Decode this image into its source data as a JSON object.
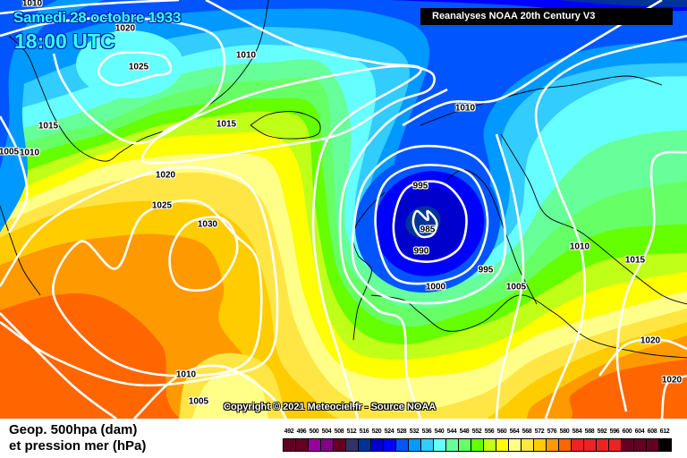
{
  "header": {
    "date": "Samedi 28 octobre 1933",
    "time": "18:00 UTC",
    "source": "Reanalyses NOAA 20th Century V3"
  },
  "copyright": "Copyright © 2021 Meteociel.fr - Source NOAA",
  "footer": {
    "line1": "Geop. 500hpa (dam)",
    "line2": "et pression mer (hPa)"
  },
  "legend": [
    {
      "value": "492",
      "color": "#660022"
    },
    {
      "value": "496",
      "color": "#660022"
    },
    {
      "value": "500",
      "color": "#990099"
    },
    {
      "value": "504",
      "color": "#990099"
    },
    {
      "value": "508",
      "color": "#660022"
    },
    {
      "value": "512",
      "color": "#333366"
    },
    {
      "value": "516",
      "color": "#003399"
    },
    {
      "value": "520",
      "color": "#0000cc"
    },
    {
      "value": "524",
      "color": "#0000ff"
    },
    {
      "value": "528",
      "color": "#0055ff"
    },
    {
      "value": "532",
      "color": "#0099ff"
    },
    {
      "value": "536",
      "color": "#33ccff"
    },
    {
      "value": "540",
      "color": "#66ffff"
    },
    {
      "value": "544",
      "color": "#66ff99"
    },
    {
      "value": "548",
      "color": "#66ff66"
    },
    {
      "value": "552",
      "color": "#66ff00"
    },
    {
      "value": "556",
      "color": "#c0ff18"
    },
    {
      "value": "560",
      "color": "#ffff00"
    },
    {
      "value": "564",
      "color": "#ffff88"
    },
    {
      "value": "568",
      "color": "#ffe644"
    },
    {
      "value": "572",
      "color": "#ffcc00"
    },
    {
      "value": "576",
      "color": "#ff9900"
    },
    {
      "value": "580",
      "color": "#ff6600"
    },
    {
      "value": "584",
      "color": "#ee2222"
    },
    {
      "value": "588",
      "color": "#ee2222"
    },
    {
      "value": "592",
      "color": "#ee2222"
    },
    {
      "value": "596",
      "color": "#ee2222"
    },
    {
      "value": "600",
      "color": "#660022"
    },
    {
      "value": "604",
      "color": "#660022"
    },
    {
      "value": "608",
      "color": "#660022"
    },
    {
      "value": "612",
      "color": "#000000"
    }
  ],
  "isobar_labels": [
    {
      "text": "1010"
    },
    {
      "text": "1020"
    },
    {
      "text": "1025"
    },
    {
      "text": "1010"
    },
    {
      "text": "1015"
    },
    {
      "text": "1005"
    },
    {
      "text": "1010"
    },
    {
      "text": "1015"
    },
    {
      "text": "1020"
    },
    {
      "text": "1025"
    },
    {
      "text": "1030"
    },
    {
      "text": "1010"
    },
    {
      "text": "995"
    },
    {
      "text": "985"
    },
    {
      "text": "990"
    },
    {
      "text": "995"
    },
    {
      "text": "1000"
    },
    {
      "text": "1005"
    },
    {
      "text": "1010"
    },
    {
      "text": "1015"
    },
    {
      "text": "1020"
    },
    {
      "text": "1020"
    },
    {
      "text": "1010"
    },
    {
      "text": "1005"
    }
  ],
  "colors": {
    "isobar": "#ffffff",
    "coast": "#000000",
    "title": "#33ffff"
  }
}
